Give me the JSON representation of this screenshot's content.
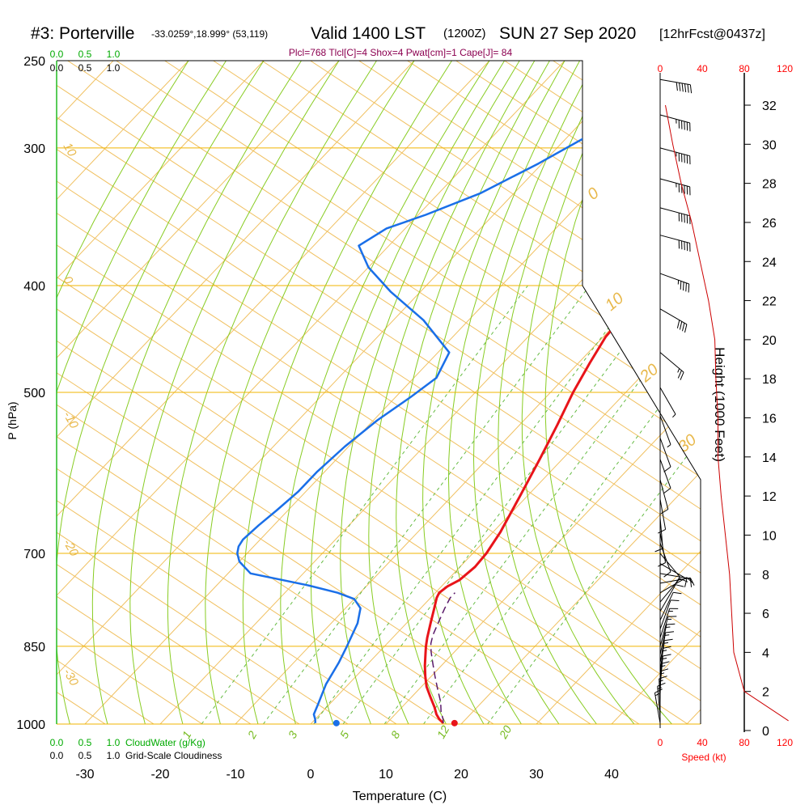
{
  "title": {
    "station": "#3: Porterville",
    "coords": "-33.0259°,18.999° (53,119)",
    "valid": "Valid 1400 LST",
    "utc": "(1200Z)",
    "date": "SUN 27 Sep 2020",
    "forecast": "[12hrFcst@0437z]"
  },
  "indices": "Plcl=768 Tlcl[C]=4 Shox=4 Pwat[cm]=1 Cape[J]= 84",
  "colors": {
    "temperature": "#e8141a",
    "humidity": "#1a6fe8",
    "parcel": "#5a1a6a",
    "isobar": "#f0b400",
    "dry_adiabat": "#f0c060",
    "moist_adiabat": "#88cc22",
    "mixing_ratio": "#66bb44",
    "wind_speed": "#cc0000"
  },
  "chart_data": {
    "type": "line",
    "xlabel": "Temperature (C)",
    "ylabel": "P (hPa)",
    "x_ticks": [
      "-30",
      "-20",
      "-10",
      "0",
      "10",
      "20",
      "30",
      "40"
    ],
    "p_ticks": [
      "250",
      "300",
      "400",
      "500",
      "700",
      "850",
      "1000"
    ],
    "cloudwater_axis": {
      "label": "CloudWater (g/Kg)",
      "ticks": [
        "0.0",
        "0.5",
        "1.0"
      ]
    },
    "cloudiness_axis": {
      "label": "Grid-Scale Cloudiness",
      "ticks": [
        "0.0",
        "0.5",
        "1.0"
      ]
    },
    "speed_axis": {
      "label": "Speed (kt)",
      "ticks": [
        "0",
        "40",
        "80",
        "120"
      ]
    },
    "height_axis": {
      "label": "Height (1000 Feet)",
      "ticks": [
        "0",
        "2",
        "4",
        "6",
        "8",
        "10",
        "12",
        "14",
        "16",
        "18",
        "20",
        "22",
        "24",
        "26",
        "28",
        "30",
        "32"
      ]
    },
    "dry_adiabat_labels": [
      "10",
      "0",
      "-10",
      "-20",
      "-30"
    ],
    "dry_adiabat_labels_right": [
      "0",
      "10",
      "20",
      "30"
    ],
    "mixing_ratio_labels": [
      "1",
      "2",
      "3",
      "5",
      "8",
      "12",
      "20"
    ],
    "series": [
      {
        "name": "Temperature",
        "points": [
          [
            17.5,
            998
          ],
          [
            16.5,
            990
          ],
          [
            15.5,
            980
          ],
          [
            14.3,
            965
          ],
          [
            12.5,
            945
          ],
          [
            10.7,
            925
          ],
          [
            9.2,
            905
          ],
          [
            7.8,
            885
          ],
          [
            6.5,
            865
          ],
          [
            5.5,
            850
          ],
          [
            4.6,
            835
          ],
          [
            3.2,
            810
          ],
          [
            1.8,
            785
          ],
          [
            0.8,
            768
          ],
          [
            0.5,
            760
          ],
          [
            0.8,
            750
          ],
          [
            1.6,
            740
          ],
          [
            2.0,
            720
          ],
          [
            1.8,
            700
          ],
          [
            1.0,
            670
          ],
          [
            -1.0,
            620
          ],
          [
            -3.0,
            575
          ],
          [
            -5.0,
            535
          ],
          [
            -7.0,
            500
          ],
          [
            -8.5,
            470
          ],
          [
            -9.7,
            445
          ],
          [
            -10.0,
            420
          ],
          [
            -10.0,
            405
          ],
          [
            -10.5,
            390
          ],
          [
            -11.5,
            360
          ],
          [
            -12.7,
            330
          ],
          [
            -14.0,
            300
          ],
          [
            -15.5,
            275
          ],
          [
            -16.8,
            255
          ]
        ]
      },
      {
        "name": "Dewpoint",
        "points": [
          [
            0.5,
            998
          ],
          [
            0.0,
            990
          ],
          [
            -0.8,
            980
          ],
          [
            -1.5,
            960
          ],
          [
            -3.0,
            920
          ],
          [
            -4.0,
            880
          ],
          [
            -5.0,
            850
          ],
          [
            -6.5,
            810
          ],
          [
            -8.0,
            785
          ],
          [
            -10.0,
            770
          ],
          [
            -13.0,
            760
          ],
          [
            -18.0,
            748
          ],
          [
            -27.0,
            730
          ],
          [
            -30.0,
            712
          ],
          [
            -31.3,
            700
          ],
          [
            -32.0,
            690
          ],
          [
            -32.3,
            680
          ],
          [
            -32.0,
            660
          ],
          [
            -31.5,
            640
          ],
          [
            -31.0,
            615
          ],
          [
            -31.0,
            590
          ],
          [
            -30.5,
            560
          ],
          [
            -29.5,
            530
          ],
          [
            -28.0,
            505
          ],
          [
            -27.0,
            485
          ],
          [
            -28.5,
            460
          ],
          [
            -36.0,
            430
          ],
          [
            -44.0,
            405
          ],
          [
            -50.0,
            385
          ],
          [
            -54.0,
            368
          ],
          [
            -52.5,
            355
          ],
          [
            -49.0,
            345
          ],
          [
            -44.5,
            330
          ],
          [
            -40.5,
            310
          ],
          [
            -36.0,
            285
          ],
          [
            -33.0,
            260
          ]
        ]
      },
      {
        "name": "Parcel",
        "points": [
          [
            17.5,
            998
          ],
          [
            17.0,
            990
          ],
          [
            15.8,
            975
          ],
          [
            14.5,
            955
          ],
          [
            12.5,
            930
          ],
          [
            10.5,
            905
          ],
          [
            8.5,
            880
          ],
          [
            6.9,
            860
          ],
          [
            5.8,
            845
          ],
          [
            5.0,
            830
          ],
          [
            4.0,
            805
          ],
          [
            3.2,
            785
          ],
          [
            2.6,
            768
          ],
          [
            2.6,
            760
          ]
        ]
      }
    ],
    "surface_points": {
      "temperature": 19.0,
      "dewpoint": 3.3,
      "pressure": 998
    },
    "height_profile": [
      [
        0.5,
        122
      ],
      [
        2,
        80
      ],
      [
        4,
        70
      ],
      [
        6,
        68
      ],
      [
        8,
        66
      ],
      [
        10,
        62
      ],
      [
        12,
        58
      ],
      [
        14,
        55
      ],
      [
        16,
        55
      ],
      [
        18,
        53
      ],
      [
        20,
        52
      ],
      [
        22,
        46
      ],
      [
        24,
        38
      ],
      [
        26,
        30
      ],
      [
        28,
        20
      ],
      [
        30,
        12
      ],
      [
        32,
        5
      ]
    ],
    "wind_barbs": [
      {
        "p": 998,
        "dir": 170,
        "spd": 15
      },
      {
        "p": 985,
        "dir": 175,
        "spd": 15
      },
      {
        "p": 970,
        "dir": 178,
        "spd": 15
      },
      {
        "p": 955,
        "dir": 180,
        "spd": 15
      },
      {
        "p": 940,
        "dir": 182,
        "spd": 15
      },
      {
        "p": 925,
        "dir": 185,
        "spd": 15
      },
      {
        "p": 910,
        "dir": 185,
        "spd": 15
      },
      {
        "p": 895,
        "dir": 188,
        "spd": 15
      },
      {
        "p": 880,
        "dir": 190,
        "spd": 15
      },
      {
        "p": 865,
        "dir": 192,
        "spd": 15
      },
      {
        "p": 850,
        "dir": 195,
        "spd": 15
      },
      {
        "p": 835,
        "dir": 198,
        "spd": 15
      },
      {
        "p": 820,
        "dir": 200,
        "spd": 10
      },
      {
        "p": 805,
        "dir": 205,
        "spd": 10
      },
      {
        "p": 790,
        "dir": 210,
        "spd": 10
      },
      {
        "p": 775,
        "dir": 220,
        "spd": 10
      },
      {
        "p": 760,
        "dir": 240,
        "spd": 10
      },
      {
        "p": 745,
        "dir": 260,
        "spd": 10
      },
      {
        "p": 730,
        "dir": 280,
        "spd": 10
      },
      {
        "p": 715,
        "dir": 300,
        "spd": 10
      },
      {
        "p": 700,
        "dir": 320,
        "spd": 10
      },
      {
        "p": 685,
        "dir": 340,
        "spd": 10
      },
      {
        "p": 670,
        "dir": 350,
        "spd": 10
      },
      {
        "p": 650,
        "dir": 355,
        "spd": 10
      },
      {
        "p": 625,
        "dir": 350,
        "spd": 10
      },
      {
        "p": 600,
        "dir": 345,
        "spd": 10
      },
      {
        "p": 575,
        "dir": 340,
        "spd": 10
      },
      {
        "p": 550,
        "dir": 340,
        "spd": 10
      },
      {
        "p": 525,
        "dir": 340,
        "spd": 5
      },
      {
        "p": 495,
        "dir": 330,
        "spd": 5
      },
      {
        "p": 460,
        "dir": 310,
        "spd": 25
      },
      {
        "p": 420,
        "dir": 300,
        "spd": 40
      },
      {
        "p": 390,
        "dir": 290,
        "spd": 45
      },
      {
        "p": 360,
        "dir": 285,
        "spd": 50
      },
      {
        "p": 340,
        "dir": 285,
        "spd": 50
      },
      {
        "p": 320,
        "dir": 285,
        "spd": 55
      },
      {
        "p": 300,
        "dir": 285,
        "spd": 55
      },
      {
        "p": 280,
        "dir": 285,
        "spd": 55
      },
      {
        "p": 260,
        "dir": 280,
        "spd": 60
      }
    ]
  }
}
